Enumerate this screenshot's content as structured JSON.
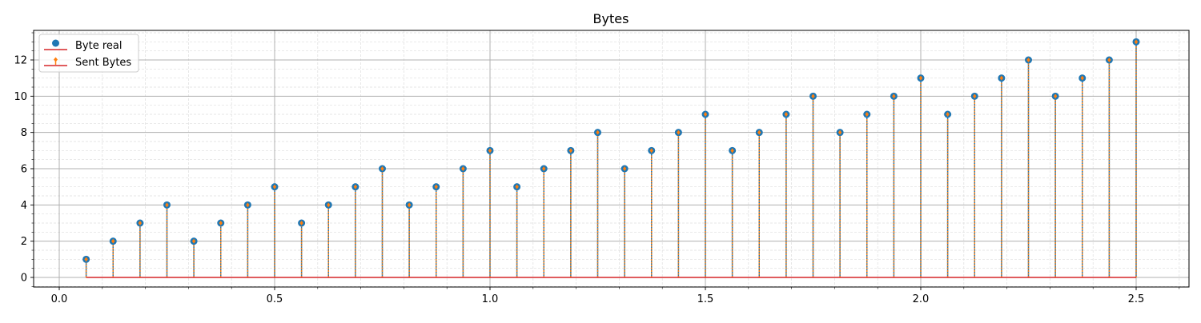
{
  "chart_data": {
    "type": "stem",
    "title": "Bytes",
    "xlabel": "",
    "ylabel": "",
    "xlim": [
      -0.06,
      2.62
    ],
    "ylim": [
      -0.6,
      13.6
    ],
    "x_ticks": [
      0.0,
      0.5,
      1.0,
      1.5,
      2.0,
      2.5
    ],
    "x_tick_labels": [
      "0.0",
      "0.5",
      "1.0",
      "1.5",
      "2.0",
      "2.5"
    ],
    "y_ticks": [
      0,
      2,
      4,
      6,
      8,
      10,
      12
    ],
    "y_tick_labels": [
      "0",
      "2",
      "4",
      "6",
      "8",
      "10",
      "12"
    ],
    "grid": true,
    "minor_grid": true,
    "legend_position": "upper-left",
    "baseline": 0,
    "colors": {
      "byte_real": "#1f77b4",
      "sent_bytes": "#ff7f0e",
      "baseline": "#d62728",
      "major_grid": "#b0b0b0",
      "minor_grid": "#dddddd"
    },
    "x": [
      0.0625,
      0.125,
      0.1875,
      0.25,
      0.3125,
      0.375,
      0.4375,
      0.5,
      0.5625,
      0.625,
      0.6875,
      0.75,
      0.8125,
      0.875,
      0.9375,
      1.0,
      1.0625,
      1.125,
      1.1875,
      1.25,
      1.3125,
      1.375,
      1.4375,
      1.5,
      1.5625,
      1.625,
      1.6875,
      1.75,
      1.8125,
      1.875,
      1.9375,
      2.0,
      2.0625,
      2.125,
      2.1875,
      2.25,
      2.3125,
      2.375,
      2.4375,
      2.5
    ],
    "series": [
      {
        "name": "Byte real",
        "marker": "circle",
        "values": [
          1,
          2,
          3,
          4,
          2,
          3,
          4,
          5,
          3,
          4,
          5,
          6,
          4,
          5,
          6,
          7,
          5,
          6,
          7,
          8,
          6,
          7,
          8,
          9,
          7,
          8,
          9,
          10,
          8,
          9,
          10,
          11,
          9,
          10,
          11,
          12,
          10,
          11,
          12,
          13
        ]
      },
      {
        "name": "Sent Bytes",
        "marker": "small-diamond",
        "values": [
          1,
          2,
          3,
          4,
          2,
          3,
          4,
          5,
          3,
          4,
          5,
          6,
          4,
          5,
          6,
          7,
          5,
          6,
          7,
          8,
          6,
          7,
          8,
          9,
          7,
          8,
          9,
          10,
          8,
          9,
          10,
          11,
          9,
          10,
          11,
          12,
          10,
          11,
          12,
          13
        ]
      }
    ]
  }
}
